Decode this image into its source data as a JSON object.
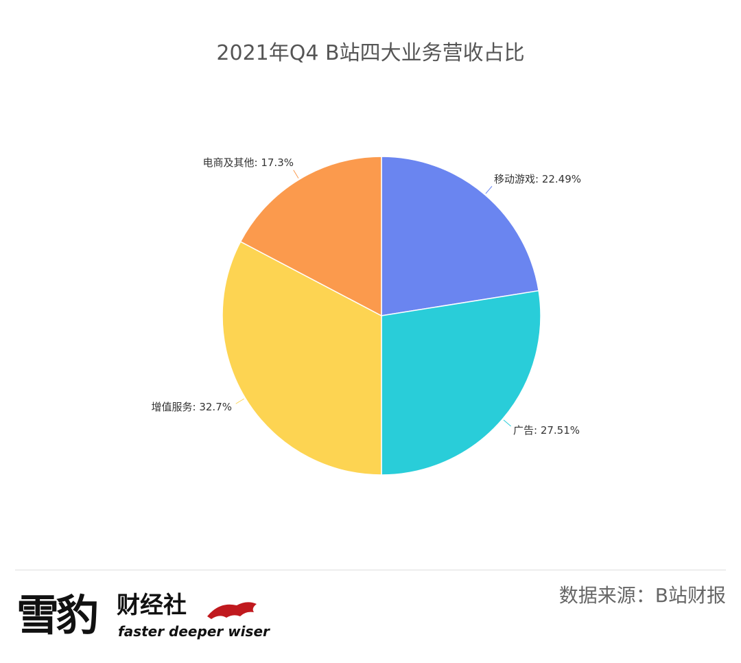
{
  "chart_data": {
    "type": "pie",
    "title": "2021年Q4 B站四大业务营收占比",
    "values": [
      22.49,
      27.51,
      32.7,
      17.3
    ],
    "value_labels": [
      "移动游戏: 22.49%",
      "广告: 27.51%",
      "增值服务: 32.7%",
      "电商及其他: 17.3%"
    ],
    "colors": [
      "#6a85f0",
      "#29cdd9",
      "#fdd452",
      "#fb9a4d"
    ]
  },
  "footer": {
    "logo": "雪豹",
    "brand": "财经社",
    "slogan": "faster deeper wiser",
    "source": "数据来源：B站财报"
  }
}
